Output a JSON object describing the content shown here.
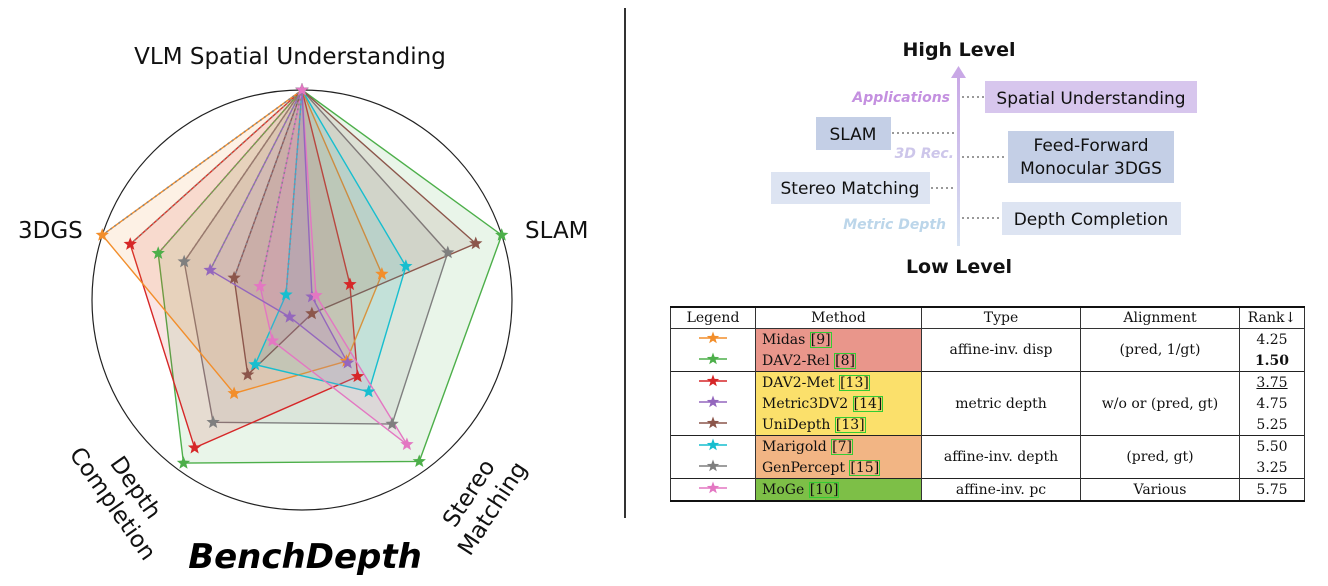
{
  "chart_data": {
    "type": "radar",
    "title": "BenchDepth",
    "axes": [
      "VLM Spatial Understanding",
      "SLAM",
      "Stereo Matching",
      "Depth Completion",
      "3DGS"
    ],
    "axis_labels": {
      "vlm": "VLM Spatial Understanding",
      "slam": "SLAM",
      "stereo": [
        "Stereo",
        "Matching"
      ],
      "depth": [
        "Depth",
        "Completion"
      ],
      "gs": "3DGS"
    },
    "series": [
      {
        "name": "Midas",
        "color": "#f28e2b",
        "values": [
          1.0,
          0.4,
          0.36,
          0.55,
          1.0
        ]
      },
      {
        "name": "DAV2-Rel",
        "color": "#4daf4a",
        "values": [
          1.0,
          1.0,
          0.95,
          0.96,
          0.72
        ]
      },
      {
        "name": "DAV2-Met",
        "color": "#d62728",
        "values": [
          1.0,
          0.24,
          0.45,
          0.87,
          0.86
        ]
      },
      {
        "name": "Metric3DV2",
        "color": "#9467bd",
        "values": [
          1.0,
          0.05,
          0.37,
          0.1,
          0.46
        ]
      },
      {
        "name": "UniDepth",
        "color": "#8c564b",
        "values": [
          1.0,
          0.87,
          0.08,
          0.44,
          0.34
        ]
      },
      {
        "name": "Marigold",
        "color": "#17becf",
        "values": [
          1.0,
          0.52,
          0.54,
          0.38,
          0.08
        ]
      },
      {
        "name": "GenPercept",
        "color": "#7f7f7f",
        "values": [
          1.0,
          0.73,
          0.73,
          0.72,
          0.59
        ]
      },
      {
        "name": "MoGe",
        "color": "#e377c2",
        "values": [
          1.0,
          0.07,
          0.85,
          0.24,
          0.21
        ]
      }
    ],
    "rmax": 1.0,
    "grid": false
  },
  "levels": {
    "high": "High Level",
    "low": "Low Level",
    "categories": {
      "applications": "Applications",
      "rec3d": "3D Rec.",
      "metric_depth": "Metric Depth"
    },
    "boxes": {
      "spatial": "Spatial Understanding",
      "slam": "SLAM",
      "ff1": "Feed-Forward",
      "ff2": "Monocular 3DGS",
      "stereo": "Stereo Matching",
      "depthcomp": "Depth Completion"
    },
    "colors": {
      "purple": "#c9a8e6",
      "purple_box": "#d7c6ed",
      "blue_box": "#c4cfe6",
      "light_box": "#dde4f2"
    }
  },
  "table": {
    "headers": {
      "legend": "Legend",
      "method": "Method",
      "type": "Type",
      "alignment": "Alignment",
      "rank": "Rank↓"
    },
    "groups": [
      {
        "color": "#e9968b",
        "type": "affine-inv. disp",
        "alignment": "(pred, 1/gt)",
        "rows": [
          {
            "method": "Midas",
            "ref": "[9]",
            "rank": "4.25",
            "marker_color": "#f28e2b"
          },
          {
            "method": "DAV2-Rel",
            "ref": "[8]",
            "rank": "1.50",
            "rank_style": "bold",
            "marker_color": "#4daf4a"
          }
        ]
      },
      {
        "color": "#fbe06b",
        "type": "metric depth",
        "alignment": "w/o or (pred, gt)",
        "rows": [
          {
            "method": "DAV2-Met",
            "ref": "[13]",
            "rank": "3.75",
            "rank_style": "underline",
            "marker_color": "#d62728"
          },
          {
            "method": "Metric3DV2",
            "ref": "[14]",
            "rank": "4.75",
            "marker_color": "#9467bd"
          },
          {
            "method": "UniDepth",
            "ref": "[13]",
            "rank": "5.25",
            "marker_color": "#8c564b"
          }
        ]
      },
      {
        "color": "#f2b584",
        "type": "affine-inv. depth",
        "alignment": "(pred, gt)",
        "rows": [
          {
            "method": "Marigold",
            "ref": "[7]",
            "rank": "5.50",
            "marker_color": "#17becf"
          },
          {
            "method": "GenPercept",
            "ref": "[15]",
            "rank": "3.25",
            "marker_color": "#7f7f7f"
          }
        ]
      },
      {
        "color": "#7dbf47",
        "type": "affine-inv. pc",
        "alignment": "Various",
        "rows": [
          {
            "method": "MoGe",
            "ref": "[10]",
            "rank": "5.75",
            "marker_color": "#e377c2"
          }
        ]
      }
    ]
  }
}
